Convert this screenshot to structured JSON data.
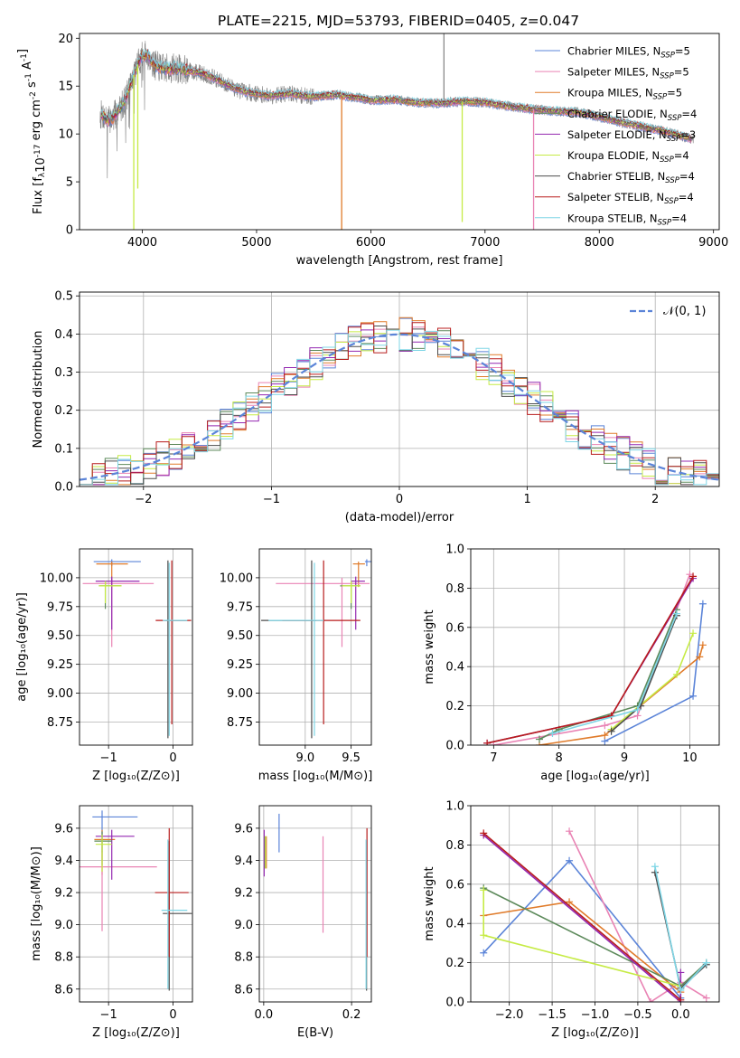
{
  "figure": {
    "title": "PLATE=2215, MJD=53793, FIBERID=0405, z=0.047"
  },
  "colors": {
    "chabrier_miles": "#5b84d8",
    "salpeter_miles": "#e983b4",
    "kroupa_miles": "#e07b2a",
    "chabrier_elodie": "#5d8a5b",
    "salpeter_elodie": "#9428b0",
    "kroupa_elodie": "#c6eb45",
    "chabrier_stelib": "#4d4d4d",
    "salpeter_stelib": "#b81c1c",
    "kroupa_stelib": "#7fd6e6",
    "data": "#808080",
    "normal": "#5b84d8"
  },
  "chart_data": [
    {
      "id": "spectrum",
      "type": "line",
      "xlabel": "wavelength [Angstrom, rest frame]",
      "ylabel_parts": [
        "Flux [f",
        "λ",
        "10",
        "-17",
        " erg cm",
        "-2",
        " s",
        "-1",
        " A",
        "-1",
        "]"
      ],
      "xlim": [
        3450,
        9050
      ],
      "ylim": [
        0,
        20.5
      ],
      "xticks": [
        4000,
        5000,
        6000,
        7000,
        8000,
        9000
      ],
      "yticks": [
        0,
        5,
        10,
        15,
        20
      ],
      "grid": false,
      "legend_position": "right",
      "legend": [
        {
          "key": "chabrier_miles",
          "label": "Chabrier MILES, N",
          "sub": "SSP",
          "suffix": "=5"
        },
        {
          "key": "salpeter_miles",
          "label": "Salpeter MILES, N",
          "sub": "SSP",
          "suffix": "=5"
        },
        {
          "key": "kroupa_miles",
          "label": "Kroupa MILES, N",
          "sub": "SSP",
          "suffix": "=5"
        },
        {
          "key": "chabrier_elodie",
          "label": "Chabrier ELODIE, N",
          "sub": "SSP",
          "suffix": "=4"
        },
        {
          "key": "salpeter_elodie",
          "label": "Salpeter ELODIE, N",
          "sub": "SSP",
          "suffix": "=3"
        },
        {
          "key": "kroupa_elodie",
          "label": "Kroupa ELODIE, N",
          "sub": "SSP",
          "suffix": "=4"
        },
        {
          "key": "chabrier_stelib",
          "label": "Chabrier STELIB, N",
          "sub": "SSP",
          "suffix": "=4"
        },
        {
          "key": "salpeter_stelib",
          "label": "Salpeter STELIB, N",
          "sub": "SSP",
          "suffix": "=4"
        },
        {
          "key": "kroupa_stelib",
          "label": "Kroupa STELIB, N",
          "sub": "SSP",
          "suffix": "=4"
        }
      ],
      "data_envelope": {
        "wavelength": [
          3650,
          3700,
          3750,
          3800,
          3850,
          3900,
          3950,
          4000,
          4050,
          4100,
          4150,
          4200,
          4300,
          4400,
          4500,
          4600,
          4700,
          4800,
          4900,
          5000,
          5100,
          5200,
          5300,
          5400,
          5500,
          5600,
          5700,
          5800,
          5900,
          6000,
          6200,
          6400,
          6600,
          6800,
          7000,
          7200,
          7400,
          7600,
          7800,
          8000,
          8200,
          8400,
          8600,
          8800
        ],
        "flux": [
          12.0,
          11.4,
          11.8,
          12.6,
          13.6,
          15.3,
          17.0,
          18.3,
          18.2,
          17.2,
          17.0,
          16.8,
          16.9,
          16.6,
          16.4,
          16.0,
          15.4,
          14.8,
          14.4,
          14.2,
          14.0,
          14.1,
          14.2,
          14.0,
          13.9,
          14.0,
          14.1,
          13.9,
          13.8,
          13.5,
          13.6,
          13.3,
          13.2,
          13.4,
          13.3,
          12.9,
          12.6,
          12.4,
          12.3,
          11.8,
          11.2,
          10.7,
          10.2,
          9.5
        ]
      },
      "model_dips": [
        {
          "key": "kroupa_elodie",
          "wavelength": 3925,
          "flux": 0
        },
        {
          "key": "kroupa_elodie",
          "wavelength": 3960,
          "flux": 4.3
        },
        {
          "key": "kroupa_miles",
          "wavelength": 5745,
          "flux": 0
        },
        {
          "key": "kroupa_elodie",
          "wavelength": 6800,
          "flux": 0.8
        },
        {
          "key": "salpeter_miles",
          "wavelength": 7425,
          "flux": 0
        }
      ]
    },
    {
      "id": "residuals",
      "type": "histogram",
      "xlabel": "(data-model)/error",
      "ylabel": "Normed distribution",
      "xlim": [
        -2.5,
        2.5
      ],
      "ylim": [
        0,
        0.51
      ],
      "xticks": [
        -2,
        -1,
        0,
        1,
        2
      ],
      "yticks": [
        0.0,
        0.1,
        0.2,
        0.3,
        0.4,
        0.5
      ],
      "grid": true,
      "legend_position": "top-right",
      "normal_label": "𝒩(0, 1)"
    },
    {
      "id": "z_age",
      "type": "errorbar",
      "xlabel": "Z [log₁₀(Z/Z⊙)]",
      "ylabel": "age  [log₁₀(age/yr)]",
      "xlim": [
        -1.45,
        0.3
      ],
      "ylim": [
        8.55,
        10.25
      ],
      "xticks": [
        -1,
        0
      ],
      "yticks": [
        8.75,
        9.0,
        9.25,
        9.5,
        9.75,
        10.0
      ],
      "grid": true
    },
    {
      "id": "mass_age",
      "type": "errorbar",
      "xlabel": "mass [log₁₀(M/M⊙)]",
      "ylabel": "",
      "xlim": [
        8.5,
        9.72
      ],
      "ylim": [
        8.55,
        10.25
      ],
      "xticks": [
        9.0,
        9.5
      ],
      "yticks": [
        8.75,
        9.0,
        9.25,
        9.5,
        9.75,
        10.0
      ],
      "grid": true
    },
    {
      "id": "age_weight",
      "type": "line",
      "xlabel": "age  [log₁₀(age/yr)]",
      "ylabel": "mass weight",
      "xlim": [
        6.65,
        10.45
      ],
      "ylim": [
        0,
        1.0
      ],
      "xticks": [
        7,
        8,
        9,
        10
      ],
      "yticks": [
        0.0,
        0.2,
        0.4,
        0.6,
        0.8,
        1.0
      ],
      "grid": true
    },
    {
      "id": "z_mass",
      "type": "errorbar",
      "xlabel": "Z [log₁₀(Z/Z⊙)]",
      "ylabel": "mass [log₁₀(M/M⊙)]",
      "xlim": [
        -1.45,
        0.3
      ],
      "ylim": [
        8.52,
        9.74
      ],
      "xticks": [
        -1,
        0
      ],
      "yticks": [
        8.6,
        8.8,
        9.0,
        9.2,
        9.4,
        9.6
      ],
      "grid": true
    },
    {
      "id": "ebv_mass",
      "type": "errorbar",
      "xlabel": "E(B-V)",
      "ylabel": "",
      "xlim": [
        -0.01,
        0.245
      ],
      "ylim": [
        8.52,
        9.74
      ],
      "xticks": [
        0.0,
        0.2
      ],
      "yticks": [
        8.6,
        8.8,
        9.0,
        9.2,
        9.4,
        9.6
      ],
      "grid": true
    },
    {
      "id": "z_weight",
      "type": "line",
      "xlabel": "Z [log₁₀(Z/Z⊙)]",
      "ylabel": "mass weight",
      "xlim": [
        -2.45,
        0.45
      ],
      "ylim": [
        0,
        1.0
      ],
      "xticks": [
        -2.0,
        -1.5,
        -1.0,
        -0.5,
        0.0
      ],
      "yticks": [
        0.0,
        0.2,
        0.4,
        0.6,
        0.8,
        1.0
      ],
      "grid": true
    }
  ]
}
